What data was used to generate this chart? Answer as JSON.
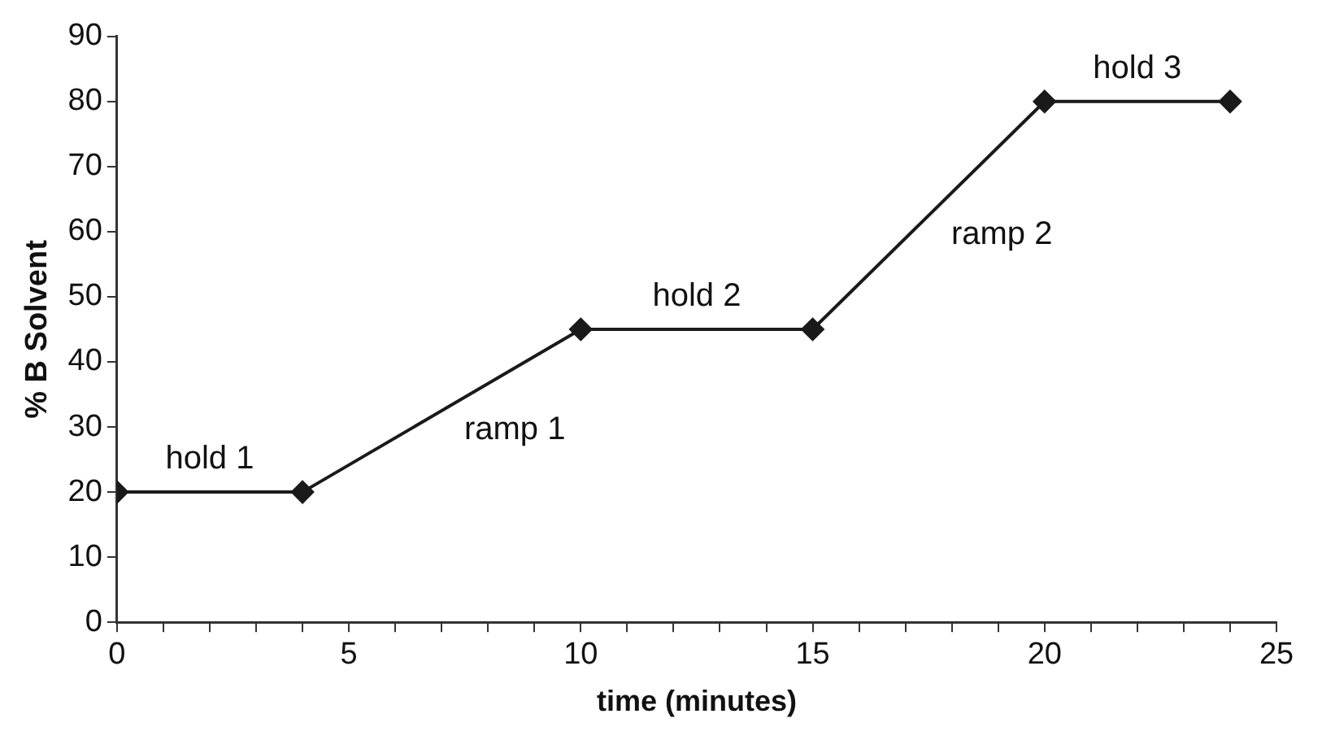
{
  "chart_data": {
    "type": "line",
    "xlabel": "time (minutes)",
    "ylabel": "% B Solvent",
    "x": [
      0,
      4,
      10,
      15,
      20,
      24
    ],
    "series": [
      {
        "color": "#1a1a1a",
        "values": [
          20,
          20,
          45,
          45,
          80,
          80
        ]
      }
    ],
    "xlim": [
      0,
      25
    ],
    "xticks": [
      0,
      {
        "value": 1,
        "label": null
      },
      {
        "value": 2,
        "label": null
      },
      {
        "value": 3,
        "label": null
      },
      {
        "value": 4,
        "label": null
      },
      5,
      {
        "value": 6,
        "label": null
      },
      {
        "value": 7,
        "label": null
      },
      {
        "value": 8,
        "label": null
      },
      {
        "value": 9,
        "label": null
      },
      10,
      {
        "value": 11,
        "label": null
      },
      {
        "value": 12,
        "label": null
      },
      {
        "value": 13,
        "label": null
      },
      {
        "value": 14,
        "label": null
      },
      15,
      {
        "value": 16,
        "label": null
      },
      {
        "value": 17,
        "label": null
      },
      {
        "value": 18,
        "label": null
      },
      {
        "value": 19,
        "label": null
      },
      20,
      {
        "value": 21,
        "label": null
      },
      {
        "value": 22,
        "label": null
      },
      {
        "value": 23,
        "label": null
      },
      {
        "value": 24,
        "label": null
      },
      25
    ],
    "ylim": [
      0,
      90
    ],
    "yticks": [
      0,
      10,
      20,
      30,
      40,
      50,
      60,
      70,
      80,
      90
    ],
    "annotations": [
      {
        "text": "hold 1",
        "x": 2,
        "y": 20
      },
      {
        "text": "ramp 1",
        "x": 7,
        "y": 32.5
      },
      {
        "text": "hold 2",
        "x": 12.5,
        "y": 45
      },
      {
        "text": "ramp 2",
        "x": 17.5,
        "y": 62.5
      },
      {
        "text": "hold 3",
        "x": 22,
        "y": 80
      }
    ],
    "grid": false,
    "legend": false,
    "marker": "diamond",
    "line_style": "solid"
  }
}
